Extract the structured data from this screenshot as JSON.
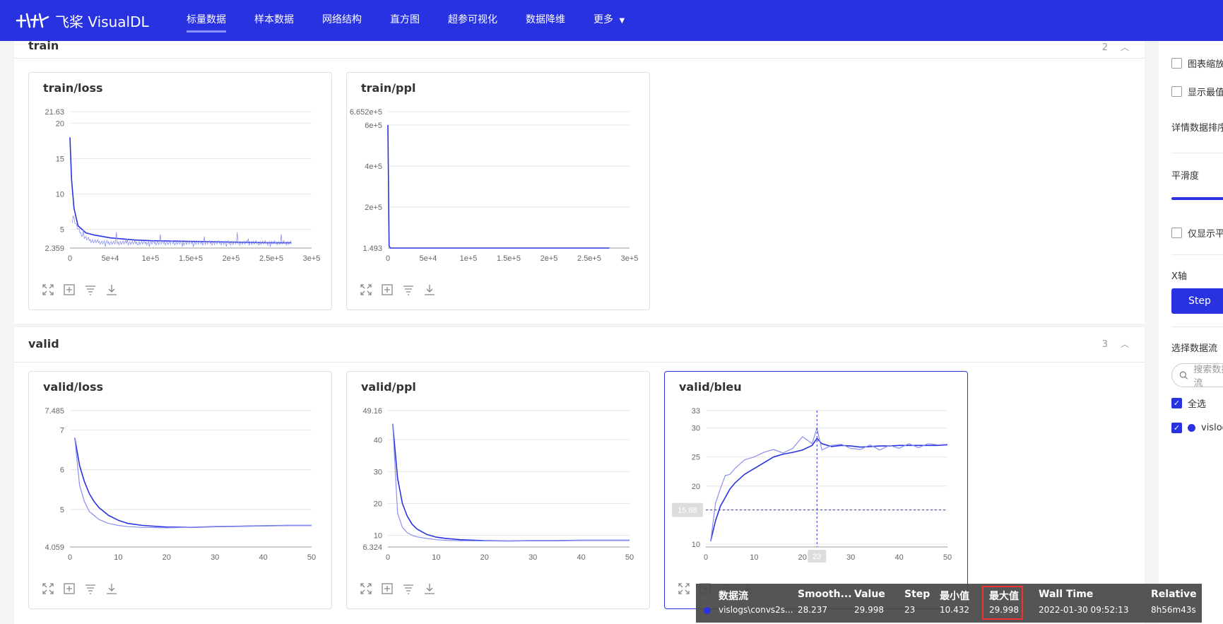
{
  "nav": {
    "logo_text": "飞桨 VisualDL",
    "items": [
      "标量数据",
      "样本数据",
      "网络结构",
      "直方图",
      "超参可视化",
      "数据降维",
      "更多"
    ],
    "active_index": 0
  },
  "groups": [
    {
      "title": "train",
      "count": "2"
    },
    {
      "title": "valid",
      "count": "3"
    }
  ],
  "charts": [
    {
      "title": "train/loss"
    },
    {
      "title": "train/ppl"
    },
    {
      "title": "valid/loss"
    },
    {
      "title": "valid/ppl"
    },
    {
      "title": "valid/bleu",
      "crosshair_y_label": "15.88",
      "crosshair_x_label": "23"
    }
  ],
  "chart_data": [
    {
      "type": "line",
      "title": "train/loss",
      "xticks": [
        "0",
        "5e+4",
        "1e+5",
        "1.5e+5",
        "2e+5",
        "2.5e+5",
        "3e+5"
      ],
      "yticks": [
        "2.359",
        "5",
        "10",
        "15",
        "20",
        "21.63"
      ],
      "xlim": [
        0,
        300000
      ],
      "ylim": [
        2.359,
        21.63
      ],
      "series": [
        {
          "x": [
            0,
            2000,
            5000,
            10000,
            20000,
            30000,
            50000,
            80000,
            100000,
            150000,
            200000,
            250000,
            275000
          ],
          "y": [
            18,
            12,
            8,
            5.5,
            4.5,
            4.2,
            3.8,
            3.5,
            3.4,
            3.3,
            3.2,
            3.1,
            3.1
          ]
        }
      ]
    },
    {
      "type": "line",
      "title": "train/ppl",
      "xticks": [
        "0",
        "5e+4",
        "1e+5",
        "1.5e+5",
        "2e+5",
        "2.5e+5",
        "3e+5"
      ],
      "yticks": [
        "1.493",
        "2e+5",
        "4e+5",
        "6e+5",
        "6.652e+5"
      ],
      "xlim": [
        0,
        300000
      ],
      "ylim": [
        1.493,
        665200
      ],
      "series": [
        {
          "x": [
            0,
            500,
            1500,
            3000,
            10000,
            50000,
            100000,
            200000,
            275000
          ],
          "y": [
            600000,
            400000,
            10000,
            100,
            20,
            15,
            12,
            10,
            10
          ]
        }
      ]
    },
    {
      "type": "line",
      "title": "valid/loss",
      "xticks": [
        "0",
        "10",
        "20",
        "30",
        "40",
        "50"
      ],
      "yticks": [
        "4.059",
        "5",
        "6",
        "7",
        "7.485"
      ],
      "xlim": [
        0,
        50
      ],
      "ylim": [
        4.059,
        7.485
      ],
      "series": [
        {
          "x": [
            1,
            2,
            3,
            4,
            5,
            6,
            8,
            10,
            12,
            15,
            20,
            25,
            30,
            35,
            40,
            45,
            50
          ],
          "y": [
            6.8,
            6.1,
            5.7,
            5.4,
            5.2,
            5.05,
            4.85,
            4.73,
            4.65,
            4.6,
            4.56,
            4.55,
            4.57,
            4.58,
            4.59,
            4.6,
            4.6
          ]
        },
        {
          "x": [
            1,
            2,
            3,
            4,
            5,
            6,
            8,
            10,
            12,
            15,
            20,
            25,
            30,
            35,
            40,
            45,
            50
          ],
          "y": [
            6.8,
            5.6,
            5.2,
            4.95,
            4.85,
            4.75,
            4.65,
            4.6,
            4.57,
            4.55,
            4.54,
            4.55,
            4.57,
            4.58,
            4.59,
            4.6,
            4.6
          ]
        }
      ]
    },
    {
      "type": "line",
      "title": "valid/ppl",
      "xticks": [
        "0",
        "10",
        "20",
        "30",
        "40",
        "50"
      ],
      "yticks": [
        "6.324",
        "10",
        "20",
        "30",
        "40",
        "49.16"
      ],
      "xlim": [
        0,
        50
      ],
      "ylim": [
        6.324,
        49.16
      ],
      "series": [
        {
          "x": [
            1,
            2,
            3,
            4,
            5,
            6,
            8,
            10,
            12,
            15,
            20,
            25,
            30,
            35,
            40,
            45,
            50
          ],
          "y": [
            45,
            28,
            20,
            16,
            13.5,
            12,
            10.3,
            9.4,
            9,
            8.6,
            8.3,
            8.2,
            8.3,
            8.3,
            8.4,
            8.4,
            8.4
          ]
        },
        {
          "x": [
            1,
            2,
            3,
            4,
            5,
            6,
            8,
            10,
            12,
            15,
            20,
            25,
            30,
            35,
            40,
            45,
            50
          ],
          "y": [
            45,
            17,
            12.5,
            10.8,
            10,
            9.5,
            9,
            8.6,
            8.4,
            8.3,
            8.2,
            8.2,
            8.3,
            8.3,
            8.4,
            8.4,
            8.4
          ]
        }
      ]
    },
    {
      "type": "line",
      "title": "valid/bleu",
      "xticks": [
        "0",
        "10",
        "20",
        "30",
        "40",
        "50"
      ],
      "yticks": [
        "10",
        "15.88",
        "20",
        "25",
        "30",
        "33"
      ],
      "xlim": [
        0,
        50
      ],
      "ylim": [
        9.5,
        33
      ],
      "series": [
        {
          "x": [
            1,
            2,
            3,
            4,
            5,
            6,
            8,
            10,
            12,
            14,
            16,
            18,
            20,
            22,
            23,
            24,
            26,
            28,
            30,
            32,
            34,
            36,
            38,
            40,
            42,
            44,
            46,
            48,
            50
          ],
          "y": [
            10.5,
            14,
            16.5,
            18,
            19.5,
            20.5,
            22,
            23,
            24,
            25,
            25.5,
            25.8,
            26.2,
            27,
            28.2,
            27.3,
            26.8,
            27,
            26.9,
            26.7,
            26.8,
            26.9,
            26.9,
            27,
            27,
            27,
            27,
            27,
            27.1
          ]
        },
        {
          "x": [
            1,
            2,
            3,
            4,
            5,
            6,
            8,
            10,
            12,
            14,
            16,
            18,
            20,
            22,
            23,
            24,
            26,
            28,
            30,
            32,
            34,
            36,
            38,
            40,
            42,
            44,
            46,
            48,
            50
          ],
          "y": [
            10.5,
            17,
            19.5,
            21.8,
            22,
            23,
            24.5,
            25,
            25.8,
            26.3,
            25.7,
            26.5,
            28.5,
            27.3,
            29.998,
            26.2,
            27,
            27.2,
            26.5,
            26.3,
            27.1,
            26.2,
            27,
            26.5,
            27.3,
            26.6,
            27.3,
            27.1,
            27.2
          ]
        }
      ]
    }
  ],
  "side": {
    "opt1": "图表缩放",
    "opt2": "显示最值",
    "detail": "详情数据排序",
    "smooth": "平滑度",
    "only_show": "仅显示平滑",
    "xaxis": "X轴",
    "step": "Step",
    "select_stream": "选择数据流",
    "search_placeholder": "搜索数据流",
    "select_all": "全选",
    "stream": "vislogs"
  },
  "tooltip": {
    "headers": [
      "数据流",
      "Smooth...",
      "Value",
      "Step",
      "最小值",
      "最大值",
      "Wall Time",
      "Relative"
    ],
    "values": [
      "vislogs\\convs2s...",
      "28.237",
      "29.998",
      "23",
      "10.432",
      "29.998",
      "2022-01-30 09:52:13",
      "8h56m43s"
    ]
  },
  "colors": {
    "primary": "#2932e1",
    "raw": "#8a90ee"
  }
}
